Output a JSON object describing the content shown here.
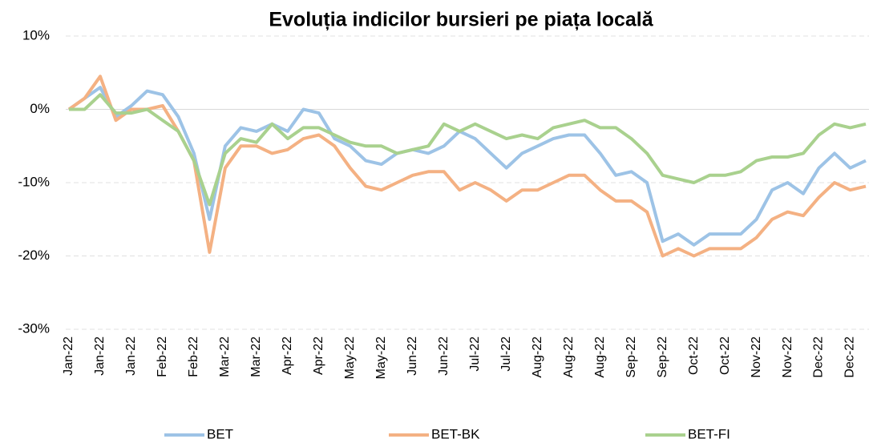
{
  "chart_data": {
    "type": "line",
    "title": "Evoluția indicilor bursieri pe piața locală",
    "categories": [
      "Jan-22",
      null,
      "Jan-22",
      null,
      "Jan-22",
      null,
      "Feb-22",
      null,
      "Feb-22",
      null,
      "Mar-22",
      null,
      "Mar-22",
      null,
      "Apr-22",
      null,
      "Apr-22",
      null,
      "May-22",
      null,
      "May-22",
      null,
      "Jun-22",
      null,
      "Jun-22",
      null,
      "Jul-22",
      null,
      "Jul-22",
      null,
      "Aug-22",
      null,
      "Aug-22",
      null,
      "Aug-22",
      null,
      "Sep-22",
      null,
      "Sep-22",
      null,
      "Oct-22",
      null,
      "Oct-22",
      null,
      "Nov-22",
      null,
      "Nov-22",
      null,
      "Dec-22",
      null,
      "Dec-22",
      null
    ],
    "series": [
      {
        "name": "BET",
        "color": "#9dc3e6",
        "values": [
          0,
          1.5,
          3,
          -1,
          0.5,
          2.5,
          2,
          -1,
          -6,
          -15,
          -5,
          -2.5,
          -3,
          -2,
          -3,
          0,
          -0.5,
          -4,
          -5,
          -7,
          -7.5,
          -6,
          -5.5,
          -6,
          -5,
          -3,
          -4,
          -6,
          -8,
          -6,
          -5,
          -4,
          -3.5,
          -3.5,
          -6,
          -9,
          -8.5,
          -10,
          -18,
          -17,
          -18.5,
          -17,
          -17,
          -17,
          -15,
          -11,
          -10,
          -11.5,
          -8,
          -6,
          -8,
          -7
        ]
      },
      {
        "name": "BET-BK",
        "color": "#f4b183",
        "values": [
          0,
          1.5,
          4.5,
          -1.5,
          0,
          0,
          0.5,
          -3,
          -7,
          -19.5,
          -8,
          -5,
          -5,
          -6,
          -5.5,
          -4,
          -3.5,
          -5,
          -8,
          -10.5,
          -11,
          -10,
          -9,
          -8.5,
          -8.5,
          -11,
          -10,
          -11,
          -12.5,
          -11,
          -11,
          -10,
          -9,
          -9,
          -11,
          -12.5,
          -12.5,
          -14,
          -20,
          -19,
          -20,
          -19,
          -19,
          -19,
          -17.5,
          -15,
          -14,
          -14.5,
          -12,
          -10,
          -11,
          -10.5
        ]
      },
      {
        "name": "BET-FI",
        "color": "#a9d18e",
        "values": [
          0,
          0,
          2,
          -0.5,
          -0.5,
          0,
          -1.5,
          -3,
          -7,
          -13,
          -6,
          -4,
          -4.5,
          -2,
          -4,
          -2.5,
          -2.5,
          -3.5,
          -4.5,
          -5,
          -5,
          -6,
          -5.5,
          -5,
          -2,
          -3,
          -2,
          -3,
          -4,
          -3.5,
          -4,
          -2.5,
          -2,
          -1.5,
          -2.5,
          -2.5,
          -4,
          -6,
          -9,
          -9.5,
          -10,
          -9,
          -9,
          -8.5,
          -7,
          -6.5,
          -6.5,
          -6,
          -3.5,
          -2,
          -2.5,
          -2
        ]
      }
    ],
    "ylim": [
      -30,
      10
    ],
    "yticks": [
      {
        "value": -30,
        "label": "-30%"
      },
      {
        "value": -20,
        "label": "-20%"
      },
      {
        "value": -10,
        "label": "-10%"
      },
      {
        "value": 0,
        "label": "0%"
      },
      {
        "value": 10,
        "label": "10%"
      }
    ],
    "grid": true,
    "legend": "bottom"
  }
}
